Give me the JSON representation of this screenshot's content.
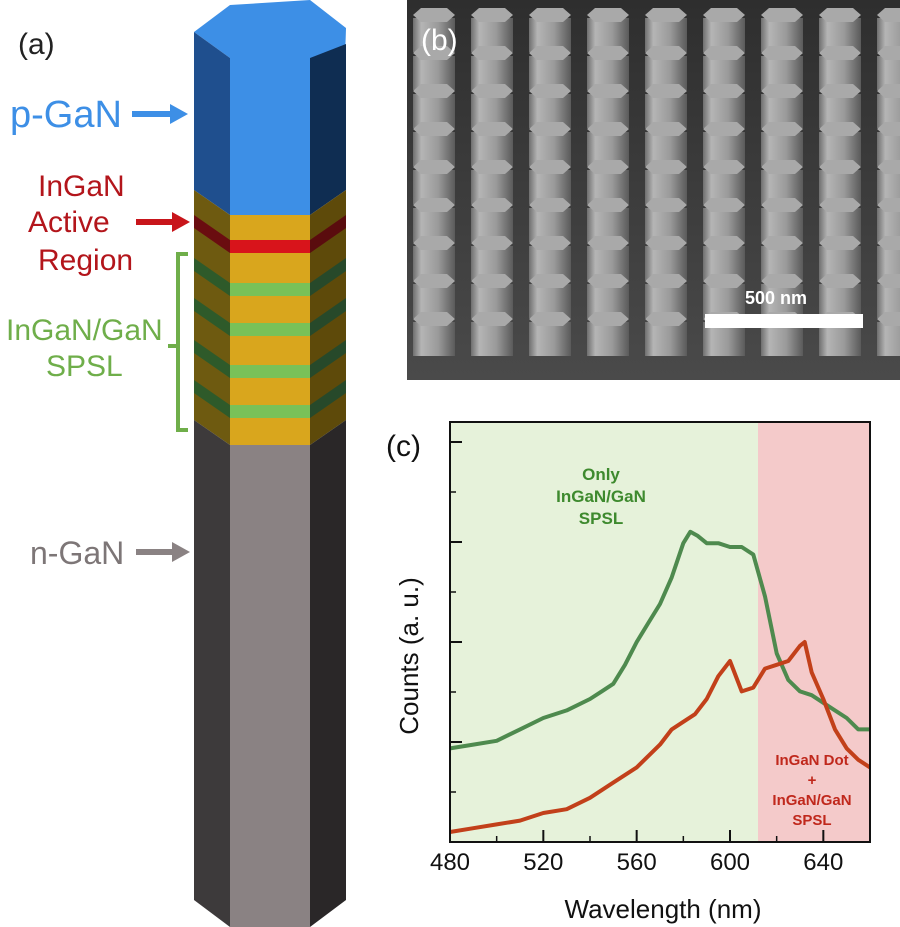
{
  "panel_a": {
    "letter": "(a)",
    "labels": {
      "p_gan": "p-GaN",
      "active_1": "InGaN",
      "active_2": "Active",
      "active_3": "Region",
      "spsl_1": "InGaN/GaN",
      "spsl_2": "SPSL",
      "n_gan": "n-GaN"
    },
    "colors": {
      "p_gan": "#3d8fe6",
      "active": "#c8151b",
      "spsl": "#6fae4a",
      "n_gan": "#8a8283"
    }
  },
  "panel_b": {
    "letter": "(b)",
    "scalebar_label": "500 nm"
  },
  "panel_c": {
    "letter": "(c)",
    "annotations": {
      "green_1": "Only",
      "green_2": "InGaN/GaN",
      "green_3": "SPSL",
      "red_1": "InGaN Dot",
      "red_2": "+",
      "red_3": "InGaN/GaN",
      "red_4": "SPSL"
    }
  },
  "chart_data": {
    "type": "line",
    "xlabel": "Wavelength (nm)",
    "ylabel": "Counts (a. u.)",
    "xlim": [
      480,
      660
    ],
    "x_ticks": [
      480,
      520,
      560,
      600,
      640
    ],
    "y_ticks_labeled": false,
    "shaded_regions": [
      {
        "x": [
          480,
          612
        ],
        "color": "#e6f2da"
      },
      {
        "x": [
          612,
          660
        ],
        "color": "#f4caca"
      }
    ],
    "series": [
      {
        "color": "#4e8a4e",
        "x": [
          480,
          490,
          500,
          510,
          520,
          530,
          540,
          545,
          550,
          555,
          560,
          565,
          570,
          575,
          580,
          583,
          586,
          590,
          595,
          600,
          605,
          610,
          615,
          620,
          625,
          630,
          635,
          640,
          645,
          650,
          655,
          660
        ],
        "y": [
          0.22,
          0.23,
          0.24,
          0.27,
          0.3,
          0.32,
          0.35,
          0.37,
          0.39,
          0.44,
          0.5,
          0.55,
          0.6,
          0.67,
          0.76,
          0.79,
          0.78,
          0.76,
          0.76,
          0.75,
          0.75,
          0.73,
          0.62,
          0.47,
          0.4,
          0.37,
          0.36,
          0.34,
          0.32,
          0.3,
          0.27,
          0.27
        ]
      },
      {
        "color": "#c2401a",
        "x": [
          480,
          490,
          500,
          510,
          520,
          530,
          540,
          550,
          560,
          570,
          575,
          580,
          585,
          590,
          595,
          600,
          605,
          610,
          615,
          620,
          625,
          630,
          632,
          635,
          640,
          645,
          650,
          655,
          660
        ],
        "y": [
          0.0,
          0.01,
          0.02,
          0.03,
          0.05,
          0.06,
          0.09,
          0.13,
          0.17,
          0.23,
          0.27,
          0.29,
          0.31,
          0.35,
          0.41,
          0.45,
          0.37,
          0.38,
          0.43,
          0.44,
          0.45,
          0.49,
          0.5,
          0.42,
          0.35,
          0.27,
          0.22,
          0.19,
          0.17
        ]
      }
    ]
  }
}
